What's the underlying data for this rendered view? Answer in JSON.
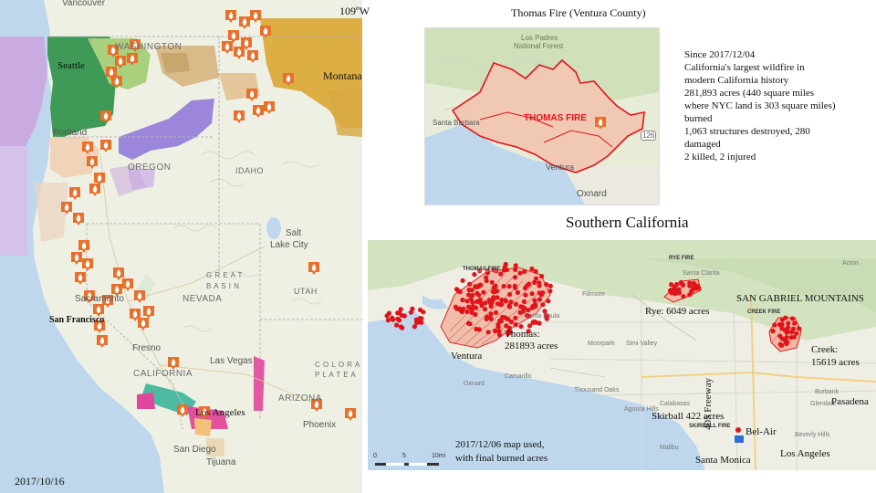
{
  "left_map": {
    "date": "2017/10/16",
    "longitude_label": "109ºW",
    "cities": {
      "vancouver": "Vancouver",
      "seattle": "Seattle",
      "portland": "Portland",
      "sacramento": "Sacramento",
      "san_francisco": "San Francisco",
      "fresno": "Fresno",
      "las_vegas": "Las Vegas",
      "los_angeles": "Los Angeles",
      "san_diego": "San Diego",
      "tijuana": "Tijuana",
      "phoenix": "Phoenix",
      "salt_lake_city_1": "Salt",
      "salt_lake_city_2": "Lake City",
      "montana": "Montana"
    },
    "regions": {
      "washington": "WASHINGTON",
      "oregon": "OREGON",
      "idaho": "IDAHO",
      "great_basin_1": "G R E A T",
      "great_basin_2": "B A S I N",
      "nevada": "NEVADA",
      "utah": "UTAH",
      "california": "CALIFORNIA",
      "arizona": "ARIZONA",
      "colorado_plateau_1": "C O L O R A",
      "colorado_plateau_2": "P L A T E A"
    }
  },
  "thomas_inset": {
    "title": "Thomas Fire (Ventura County)",
    "map_labels": {
      "los_padres_1": "Los Padres",
      "los_padres_2": "National Forest",
      "santa_barbara": "Santa Barbara",
      "ventura": "Ventura",
      "oxnard": "Oxnard",
      "fire_name": "THOMAS FIRE",
      "route": "126"
    },
    "facts": [
      "Since 2017/12/04",
      "California's largest wildfire in",
      "modern California history",
      "281,893 acres (440 square miles",
      "where NYC land is 303 square miles)",
      "burned",
      "1,063 structures destroyed, 280",
      "damaged",
      "2 killed, 2 injured"
    ]
  },
  "socal_map": {
    "title": "Southern California",
    "annotations": {
      "thomas_1": "Thomas:",
      "thomas_2": "281893 acres",
      "ventura": "Ventura",
      "rye": "Rye: 6049 acres",
      "san_gabriel": "SAN GABRIEL MOUNTAINS",
      "creek_1": "Creek:",
      "creek_2": "15619 acres",
      "freeway": "405 Freeway",
      "pasadena": "Pasadena",
      "skirball": "Skirball 422 acres",
      "bel_air": "Bel-Air",
      "los_angeles": "Los Angeles",
      "santa_monica": "Santa Monica",
      "note_1": "2017/12/06 map used,",
      "note_2": "with final burned acres"
    },
    "fire_tags": {
      "thomas": "THOMAS FIRE",
      "rye": "RYE FIRE",
      "creek": "CREEK FIRE",
      "skirball": "SKIRBALL FIRE"
    },
    "base_labels": {
      "santa_clarita": "Santa Clarita",
      "fillmore": "Fillmore",
      "santa_paula": "Santa Paula",
      "moorpark": "Moorpark",
      "simi_valley": "Simi Valley",
      "camarillo": "Camarillo",
      "oxnard": "Oxnard",
      "thousand_oaks": "Thousand Oaks",
      "agoura_hills": "Agoura Hills",
      "calabasas": "Calabasas",
      "malibu": "Malibu",
      "burbank": "Burbank",
      "glendale": "Glendale",
      "beverly_hills": "Beverly Hills",
      "acton": "Acton",
      "scale_0": "0",
      "scale_5": "5",
      "scale_10": "10mi"
    }
  },
  "colors": {
    "fire_icon": "#e8702a",
    "perimeter_red": "#e0141a",
    "burn_fill": "#f1b9a4",
    "thomas_fill": "#f0c8b4",
    "land": "#eef0e4",
    "forest": "#d3e3c0",
    "wash_green": "#3f9a57",
    "lilac": "#c8a8e0",
    "tan": "#d8bb88",
    "gold": "#dcae43",
    "pink": "#e0479a",
    "ocean": "#bfd7ec"
  }
}
